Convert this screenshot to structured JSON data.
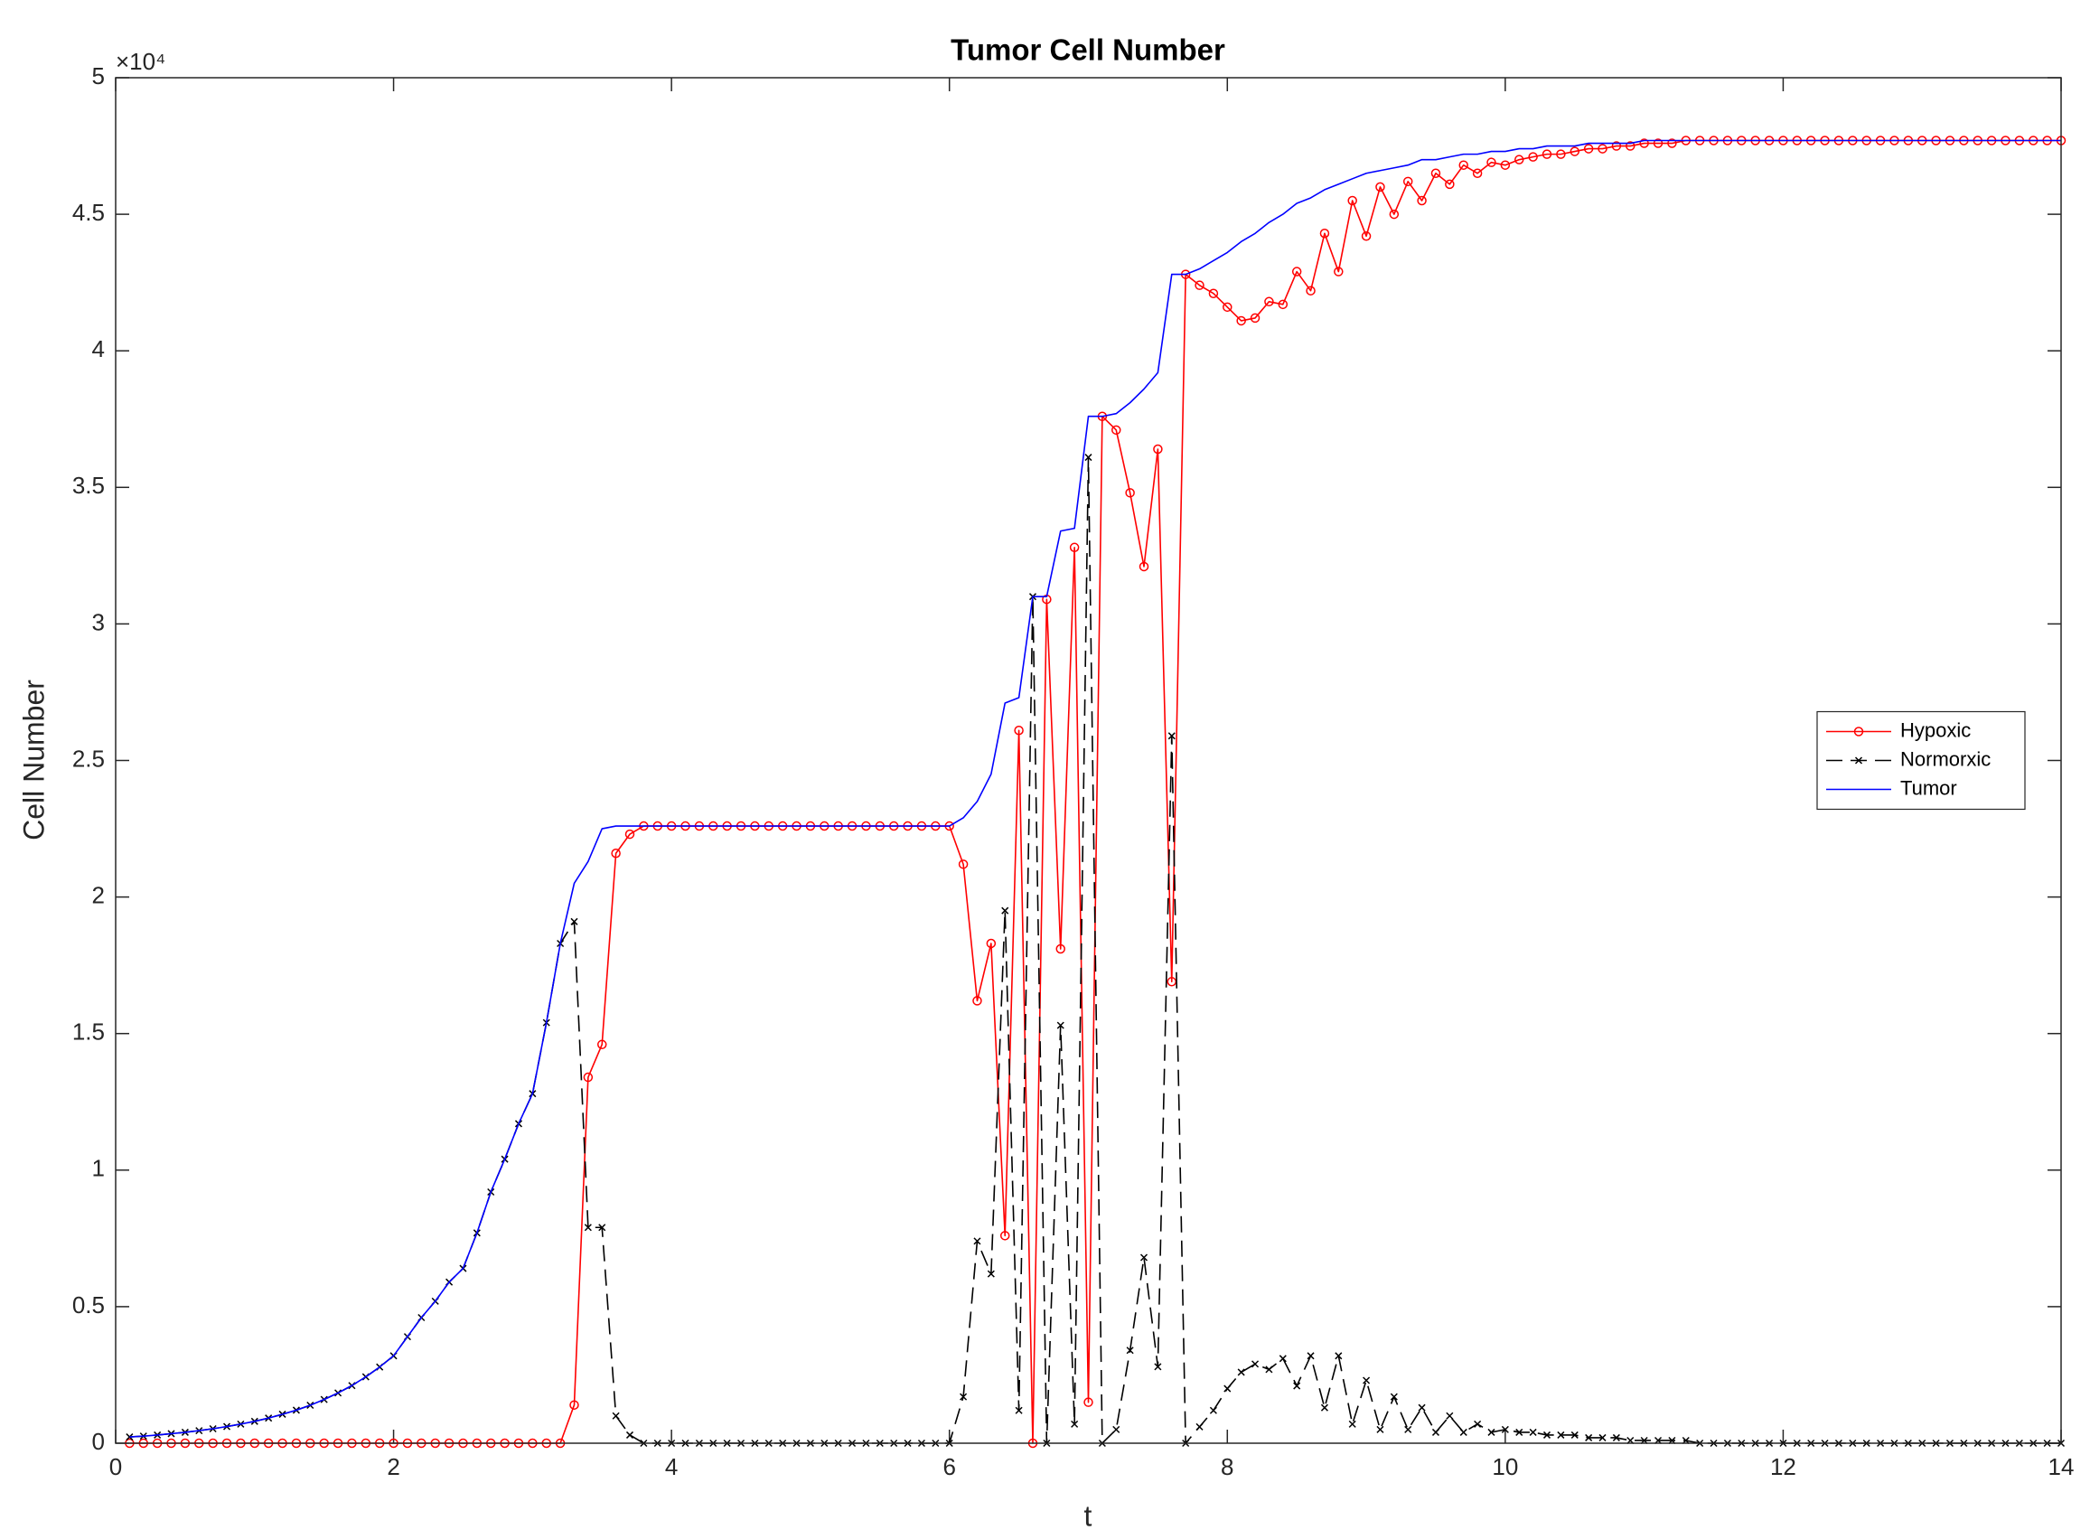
{
  "chart_data": {
    "type": "line",
    "title": "Tumor Cell Number",
    "x_label": "t",
    "y_label": "Cell Number",
    "y_exponent": "×10⁴",
    "xlim": [
      0,
      14
    ],
    "ylim": [
      0,
      5
    ],
    "xticks": [
      0,
      2,
      4,
      6,
      8,
      10,
      12,
      14
    ],
    "yticks": [
      0,
      0.5,
      1,
      1.5,
      2,
      2.5,
      3,
      3.5,
      4,
      4.5,
      5
    ],
    "grid": false,
    "legend_location": "east",
    "x": [
      0.1,
      0.2,
      0.3,
      0.4,
      0.5,
      0.6,
      0.7,
      0.8,
      0.9,
      1.0,
      1.1,
      1.2,
      1.3,
      1.4,
      1.5,
      1.6,
      1.7,
      1.8,
      1.9,
      2.0,
      2.1,
      2.2,
      2.3,
      2.4,
      2.5,
      2.6,
      2.7,
      2.8,
      2.9,
      3.0,
      3.1,
      3.2,
      3.3,
      3.4,
      3.5,
      3.6,
      3.7,
      3.8,
      3.9,
      4.0,
      4.1,
      4.2,
      4.3,
      4.4,
      4.5,
      4.6,
      4.7,
      4.8,
      4.9,
      5.0,
      5.1,
      5.2,
      5.3,
      5.4,
      5.5,
      5.6,
      5.7,
      5.8,
      5.9,
      6.0,
      6.1,
      6.2,
      6.3,
      6.4,
      6.5,
      6.6,
      6.7,
      6.8,
      6.9,
      7.0,
      7.1,
      7.2,
      7.3,
      7.4,
      7.5,
      7.6,
      7.7,
      7.8,
      7.9,
      8.0,
      8.1,
      8.2,
      8.3,
      8.4,
      8.5,
      8.6,
      8.7,
      8.8,
      8.9,
      9.0,
      9.1,
      9.2,
      9.3,
      9.4,
      9.5,
      9.6,
      9.7,
      9.8,
      9.9,
      10.0,
      10.1,
      10.2,
      10.3,
      10.4,
      10.5,
      10.6,
      10.7,
      10.8,
      10.9,
      11.0,
      11.1,
      11.2,
      11.3,
      11.4,
      11.5,
      11.6,
      11.7,
      11.8,
      11.9,
      12.0,
      12.1,
      12.2,
      12.3,
      12.4,
      12.5,
      12.6,
      12.7,
      12.8,
      12.9,
      13.0,
      13.1,
      13.2,
      13.3,
      13.4,
      13.5,
      13.6,
      13.7,
      13.8,
      13.9,
      14.0
    ],
    "series": [
      {
        "name": "Hypoxic",
        "color": "#ff0000",
        "marker": "circle",
        "dash": "solid",
        "values": [
          0,
          0,
          0,
          0,
          0,
          0,
          0,
          0,
          0,
          0,
          0,
          0,
          0,
          0,
          0,
          0,
          0,
          0,
          0,
          0,
          0,
          0,
          0,
          0,
          0,
          0,
          0,
          0,
          0,
          0,
          0,
          0,
          0.14,
          1.34,
          1.46,
          2.16,
          2.23,
          2.26,
          2.26,
          2.26,
          2.26,
          2.26,
          2.26,
          2.26,
          2.26,
          2.26,
          2.26,
          2.26,
          2.26,
          2.26,
          2.26,
          2.26,
          2.26,
          2.26,
          2.26,
          2.26,
          2.26,
          2.26,
          2.26,
          2.26,
          2.12,
          1.62,
          1.83,
          0.76,
          2.61,
          0,
          3.09,
          1.81,
          3.28,
          0.15,
          3.76,
          3.71,
          3.48,
          3.21,
          3.64,
          1.69,
          4.28,
          4.24,
          4.21,
          4.16,
          4.11,
          4.12,
          4.18,
          4.17,
          4.29,
          4.22,
          4.43,
          4.29,
          4.55,
          4.42,
          4.6,
          4.5,
          4.62,
          4.55,
          4.65,
          4.61,
          4.68,
          4.65,
          4.69,
          4.68,
          4.7,
          4.71,
          4.72,
          4.72,
          4.73,
          4.74,
          4.74,
          4.75,
          4.75,
          4.76,
          4.76,
          4.76,
          4.77,
          4.77,
          4.77,
          4.77,
          4.77,
          4.77,
          4.77,
          4.77,
          4.77,
          4.77,
          4.77,
          4.77,
          4.77,
          4.77,
          4.77,
          4.77,
          4.77,
          4.77,
          4.77,
          4.77,
          4.77,
          4.77,
          4.77,
          4.77,
          4.77,
          4.77,
          4.77,
          4.77
        ]
      },
      {
        "name": "Normorxic",
        "color": "#000000",
        "marker": "x",
        "dash": "dashed",
        "values": [
          0.023,
          0.026,
          0.03,
          0.035,
          0.04,
          0.046,
          0.053,
          0.061,
          0.07,
          0.08,
          0.092,
          0.106,
          0.121,
          0.139,
          0.16,
          0.184,
          0.211,
          0.243,
          0.279,
          0.32,
          0.39,
          0.46,
          0.52,
          0.59,
          0.64,
          0.77,
          0.92,
          1.04,
          1.17,
          1.28,
          1.54,
          1.83,
          1.91,
          0.79,
          0.79,
          0.1,
          0.03,
          0,
          0,
          0,
          0,
          0,
          0,
          0,
          0,
          0,
          0,
          0,
          0,
          0,
          0,
          0,
          0,
          0,
          0,
          0,
          0,
          0,
          0,
          0,
          0.17,
          0.74,
          0.62,
          1.95,
          0.12,
          3.1,
          0,
          1.53,
          0.07,
          3.61,
          0,
          0.05,
          0.34,
          0.68,
          0.28,
          2.59,
          0,
          0.06,
          0.12,
          0.2,
          0.26,
          0.29,
          0.27,
          0.31,
          0.21,
          0.32,
          0.13,
          0.32,
          0.07,
          0.23,
          0.05,
          0.17,
          0.05,
          0.13,
          0.04,
          0.1,
          0.04,
          0.07,
          0.04,
          0.05,
          0.04,
          0.04,
          0.03,
          0.03,
          0.03,
          0.02,
          0.02,
          0.02,
          0.01,
          0.01,
          0.01,
          0.01,
          0.01,
          0,
          0,
          0,
          0,
          0,
          0,
          0,
          0,
          0,
          0,
          0,
          0,
          0,
          0,
          0,
          0,
          0,
          0,
          0,
          0,
          0,
          0,
          0,
          0,
          0,
          0,
          0
        ]
      },
      {
        "name": "Tumor",
        "color": "#0000ff",
        "marker": "none",
        "dash": "solid",
        "values": [
          0.023,
          0.026,
          0.03,
          0.035,
          0.04,
          0.046,
          0.053,
          0.061,
          0.07,
          0.08,
          0.092,
          0.106,
          0.121,
          0.139,
          0.16,
          0.184,
          0.211,
          0.243,
          0.279,
          0.32,
          0.39,
          0.46,
          0.52,
          0.59,
          0.64,
          0.77,
          0.92,
          1.04,
          1.17,
          1.28,
          1.54,
          1.83,
          2.05,
          2.13,
          2.25,
          2.26,
          2.26,
          2.26,
          2.26,
          2.26,
          2.26,
          2.26,
          2.26,
          2.26,
          2.26,
          2.26,
          2.26,
          2.26,
          2.26,
          2.26,
          2.26,
          2.26,
          2.26,
          2.26,
          2.26,
          2.26,
          2.26,
          2.26,
          2.26,
          2.26,
          2.29,
          2.35,
          2.45,
          2.71,
          2.73,
          3.1,
          3.1,
          3.34,
          3.35,
          3.76,
          3.76,
          3.77,
          3.81,
          3.86,
          3.92,
          4.28,
          4.28,
          4.3,
          4.33,
          4.36,
          4.4,
          4.43,
          4.47,
          4.5,
          4.54,
          4.56,
          4.59,
          4.61,
          4.63,
          4.65,
          4.66,
          4.67,
          4.68,
          4.7,
          4.7,
          4.71,
          4.72,
          4.72,
          4.73,
          4.73,
          4.74,
          4.74,
          4.75,
          4.75,
          4.75,
          4.76,
          4.76,
          4.76,
          4.76,
          4.77,
          4.77,
          4.77,
          4.77,
          4.77,
          4.77,
          4.77,
          4.77,
          4.77,
          4.77,
          4.77,
          4.77,
          4.77,
          4.77,
          4.77,
          4.77,
          4.77,
          4.77,
          4.77,
          4.77,
          4.77,
          4.77,
          4.77,
          4.77,
          4.77,
          4.77,
          4.77,
          4.77,
          4.77,
          4.77,
          4.77
        ]
      }
    ]
  }
}
